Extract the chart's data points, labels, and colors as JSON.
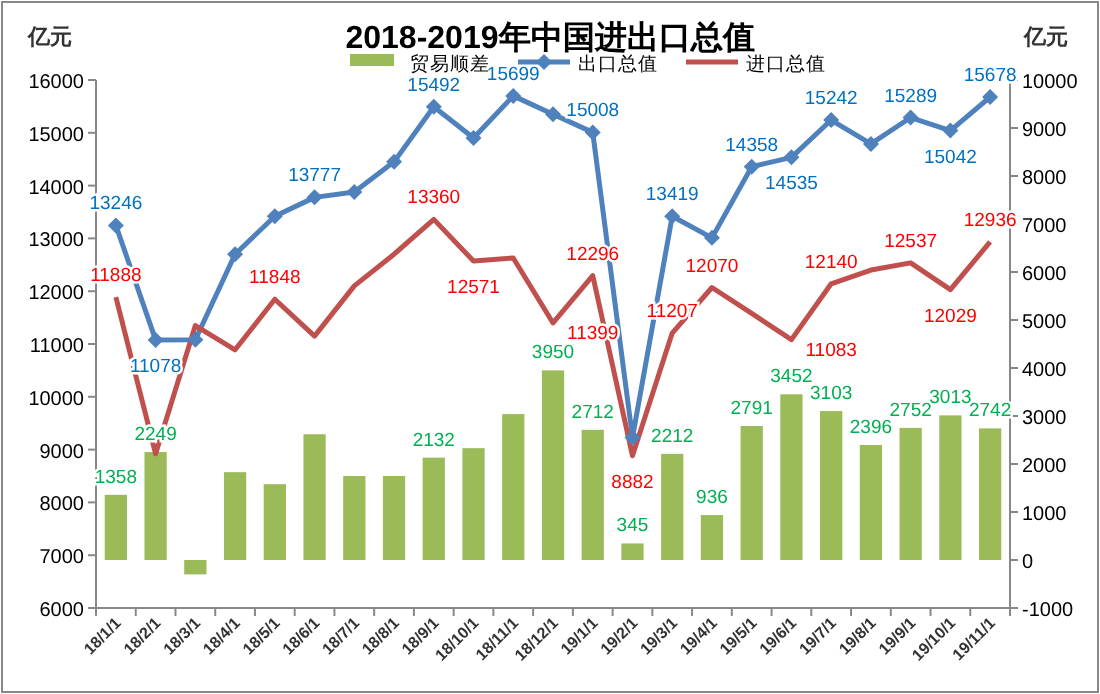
{
  "chart_data": {
    "type": "bar",
    "title": "2018-2019年中国进出口总值",
    "ylabel": "亿元",
    "y2label": "亿元",
    "legend": "top",
    "categories": [
      "18/1/1",
      "18/2/1",
      "18/3/1",
      "18/4/1",
      "18/5/1",
      "18/6/1",
      "18/7/1",
      "18/8/1",
      "18/9/1",
      "18/10/1",
      "18/11/1",
      "18/12/1",
      "19/1/1",
      "19/2/1",
      "19/3/1",
      "19/4/1",
      "19/5/1",
      "19/6/1",
      "19/7/1",
      "19/8/1",
      "19/9/1",
      "19/10/1",
      "19/11/1"
    ],
    "ylim": [
      6000,
      16000
    ],
    "yticks": [
      6000,
      7000,
      8000,
      9000,
      10000,
      11000,
      12000,
      13000,
      14000,
      15000,
      16000
    ],
    "y2lim": [
      -1000,
      10000
    ],
    "y2ticks": [
      -1000,
      0,
      1000,
      2000,
      3000,
      4000,
      5000,
      6000,
      7000,
      8000,
      9000,
      10000
    ],
    "series": [
      {
        "name": "贸易顺差",
        "axis": "y2",
        "color": "#9bbb59",
        "values": [
          1358,
          2249,
          -300,
          1830,
          1580,
          2620,
          1750,
          1750,
          2132,
          2330,
          3040,
          3950,
          2712,
          345,
          2212,
          936,
          2791,
          3452,
          3103,
          2396,
          2752,
          3013,
          2742
        ],
        "value_labels": [
          "1358",
          "2249",
          null,
          null,
          null,
          null,
          null,
          null,
          "2132",
          null,
          null,
          "3950",
          "2712",
          "345",
          "2212",
          "936",
          "2791",
          "3452",
          "3103",
          "2396",
          "2752",
          "3013",
          "2742"
        ]
      },
      {
        "name": "出口总值",
        "type": "line",
        "marker": "diamond",
        "color": "#4f81bd",
        "values": [
          13246,
          11078,
          11080,
          12700,
          13420,
          13777,
          13880,
          14450,
          15492,
          14900,
          15699,
          15350,
          15008,
          9230,
          13419,
          13010,
          14358,
          14535,
          15242,
          14790,
          15289,
          15042,
          15678
        ],
        "value_labels": [
          "13246",
          "11078",
          null,
          null,
          null,
          "13777",
          null,
          null,
          "15492",
          null,
          "15699",
          null,
          "15008",
          null,
          "13419",
          null,
          "14358",
          "14535",
          "15242",
          null,
          "15289",
          "15042",
          "15678"
        ]
      },
      {
        "name": "进口总值",
        "type": "line",
        "marker": "none",
        "color": "#c0504d",
        "values": [
          11888,
          8920,
          11350,
          10890,
          11848,
          11150,
          12100,
          12700,
          13360,
          12571,
          12630,
          11399,
          12296,
          8882,
          11207,
          12070,
          11580,
          11083,
          12140,
          12400,
          12537,
          12029,
          12936
        ],
        "value_labels": [
          "11888",
          null,
          null,
          null,
          "11848",
          null,
          null,
          null,
          "13360",
          "12571",
          null,
          "11399",
          "12296",
          "8882",
          "11207",
          "12070",
          null,
          "11083",
          "12140",
          null,
          "12537",
          "12029",
          "12936"
        ]
      }
    ]
  }
}
